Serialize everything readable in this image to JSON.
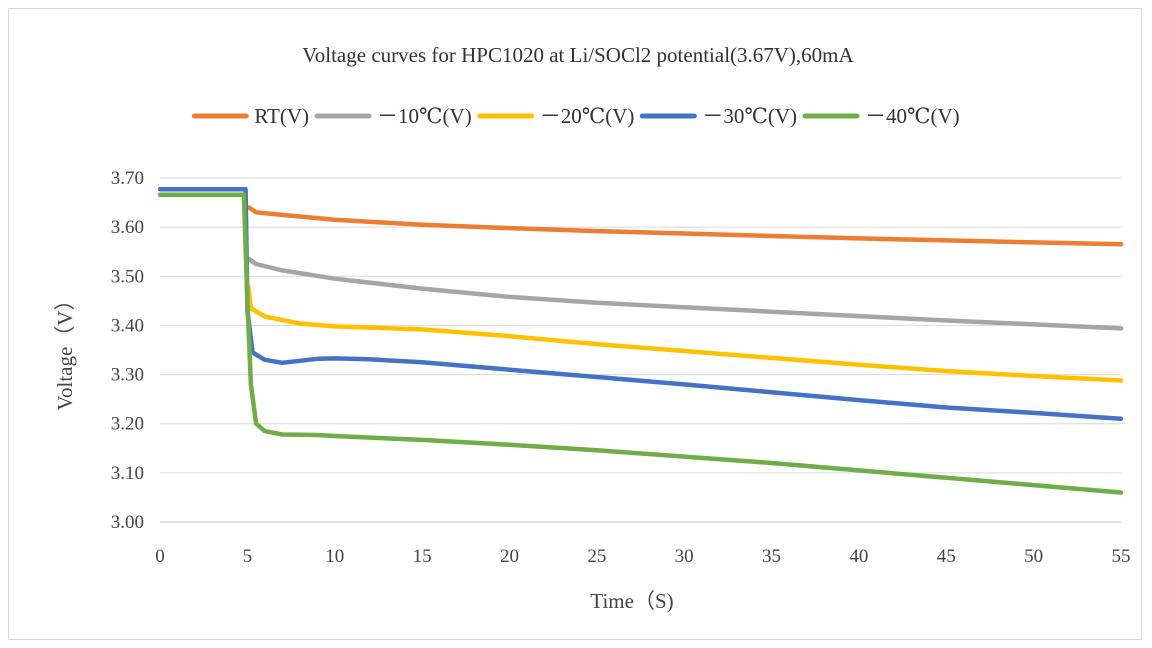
{
  "chart_data": {
    "type": "line",
    "title": "Voltage curves for HPC1020 at Li/SOCl2 potential(3.67V),60mA",
    "xlabel": "Time（S)",
    "ylabel": "Voltage（V）",
    "xlim": [
      0,
      55
    ],
    "ylim": [
      3.0,
      3.7
    ],
    "x_ticks": [
      "0",
      "5",
      "10",
      "15",
      "20",
      "25",
      "30",
      "35",
      "40",
      "45",
      "50",
      "55"
    ],
    "y_ticks": [
      "3.00",
      "3.10",
      "3.20",
      "3.30",
      "3.40",
      "3.50",
      "3.60",
      "3.70"
    ],
    "grid": "horizontal",
    "legend_position": "top",
    "series": [
      {
        "name": "RT(V)",
        "color": "#ED7D31",
        "points": [
          [
            5.1,
            3.64
          ],
          [
            5.5,
            3.63
          ],
          [
            7,
            3.625
          ],
          [
            10,
            3.615
          ],
          [
            15,
            3.605
          ],
          [
            20,
            3.598
          ],
          [
            25,
            3.592
          ],
          [
            30,
            3.587
          ],
          [
            35,
            3.582
          ],
          [
            40,
            3.577
          ],
          [
            45,
            3.573
          ],
          [
            50,
            3.569
          ],
          [
            55,
            3.565
          ]
        ]
      },
      {
        "name": "－10℃(V)",
        "color": "#A5A5A5",
        "points": [
          [
            5.1,
            3.535
          ],
          [
            5.5,
            3.525
          ],
          [
            7,
            3.512
          ],
          [
            10,
            3.495
          ],
          [
            15,
            3.475
          ],
          [
            20,
            3.458
          ],
          [
            25,
            3.446
          ],
          [
            30,
            3.437
          ],
          [
            35,
            3.428
          ],
          [
            40,
            3.419
          ],
          [
            45,
            3.41
          ],
          [
            50,
            3.402
          ],
          [
            55,
            3.394
          ]
        ]
      },
      {
        "name": "－20℃(V)",
        "color": "#FFC000",
        "points": [
          [
            5.05,
            3.48
          ],
          [
            5.2,
            3.435
          ],
          [
            6,
            3.418
          ],
          [
            8,
            3.404
          ],
          [
            10,
            3.398
          ],
          [
            15,
            3.392
          ],
          [
            20,
            3.378
          ],
          [
            25,
            3.362
          ],
          [
            30,
            3.348
          ],
          [
            35,
            3.334
          ],
          [
            40,
            3.32
          ],
          [
            45,
            3.307
          ],
          [
            50,
            3.297
          ],
          [
            55,
            3.288
          ]
        ]
      },
      {
        "name": "－30℃(V)",
        "color": "#4472C4",
        "points": [
          [
            0,
            3.677
          ],
          [
            4.9,
            3.677
          ],
          [
            5.0,
            3.43
          ],
          [
            5.3,
            3.345
          ],
          [
            6,
            3.33
          ],
          [
            7,
            3.324
          ],
          [
            8,
            3.328
          ],
          [
            9,
            3.332
          ],
          [
            10,
            3.333
          ],
          [
            12,
            3.331
          ],
          [
            15,
            3.325
          ],
          [
            20,
            3.31
          ],
          [
            25,
            3.295
          ],
          [
            30,
            3.28
          ],
          [
            35,
            3.264
          ],
          [
            40,
            3.248
          ],
          [
            45,
            3.233
          ],
          [
            50,
            3.222
          ],
          [
            55,
            3.21
          ]
        ]
      },
      {
        "name": "－40℃(V)",
        "color": "#70AD47",
        "points": [
          [
            0,
            3.666
          ],
          [
            4.8,
            3.666
          ],
          [
            5.0,
            3.45
          ],
          [
            5.2,
            3.28
          ],
          [
            5.5,
            3.2
          ],
          [
            6,
            3.185
          ],
          [
            7,
            3.178
          ],
          [
            9,
            3.177
          ],
          [
            10,
            3.175
          ],
          [
            15,
            3.167
          ],
          [
            20,
            3.157
          ],
          [
            25,
            3.146
          ],
          [
            30,
            3.133
          ],
          [
            35,
            3.12
          ],
          [
            40,
            3.105
          ],
          [
            45,
            3.09
          ],
          [
            50,
            3.075
          ],
          [
            55,
            3.06
          ]
        ]
      }
    ]
  }
}
